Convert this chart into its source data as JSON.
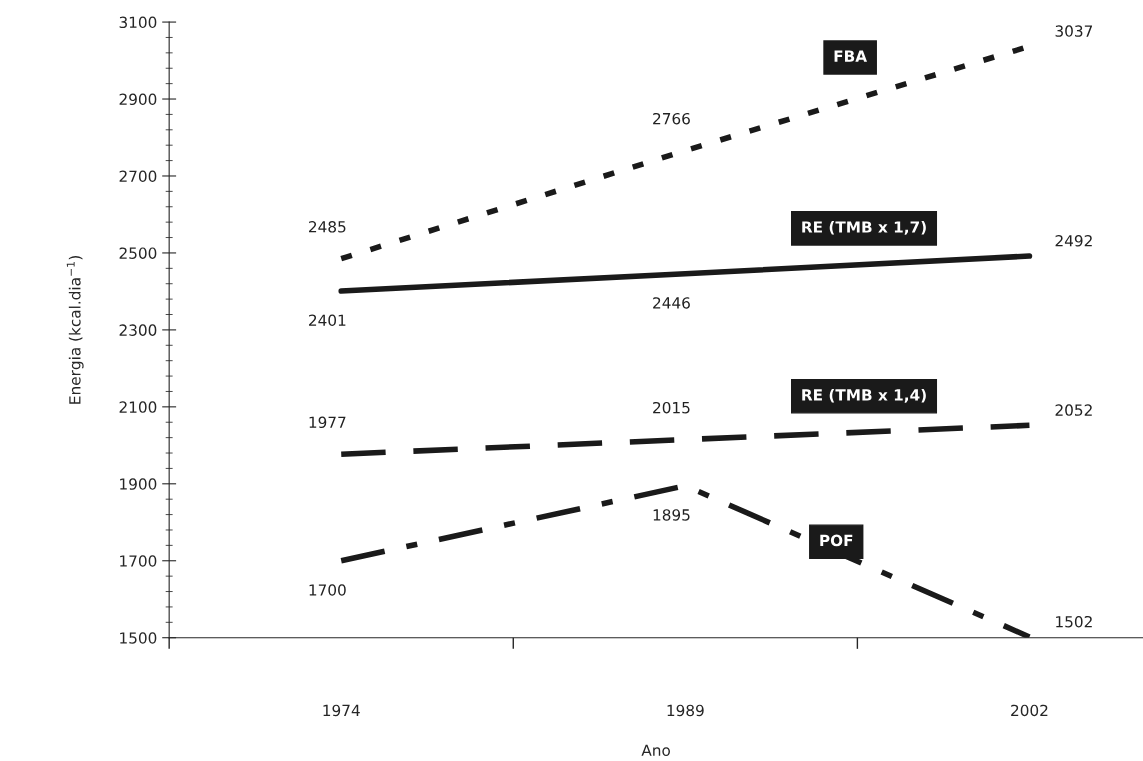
{
  "chart_data": {
    "type": "line",
    "xlabel": "Ano",
    "ylabel": "Energia (kcal.dia$^{−1}$)",
    "categories": [
      "1974",
      "1989",
      "2002"
    ],
    "series": [
      {
        "name": "FBA",
        "color": "#1a1a1a",
        "line_style": "dotted",
        "values": [
          2485,
          2766,
          3037
        ]
      },
      {
        "name": "RE (TMB x 1,7)",
        "color": "#1a1a1a",
        "line_style": "solid",
        "values": [
          2401,
          2446,
          2492
        ]
      },
      {
        "name": "RE (TMB x 1,4)",
        "color": "#1a1a1a",
        "line_style": "dashed",
        "values": [
          1977,
          2015,
          2052
        ]
      },
      {
        "name": "POF",
        "color": "#1a1a1a",
        "line_style": "dashdot",
        "values": [
          1700,
          1895,
          1502
        ]
      }
    ],
    "ylim": [
      1500,
      3100
    ],
    "yticks": [
      1500,
      1700,
      1900,
      2100,
      2300,
      2500,
      2700,
      2900,
      3100
    ],
    "data_labels": true,
    "legend": false,
    "grid": false
  }
}
